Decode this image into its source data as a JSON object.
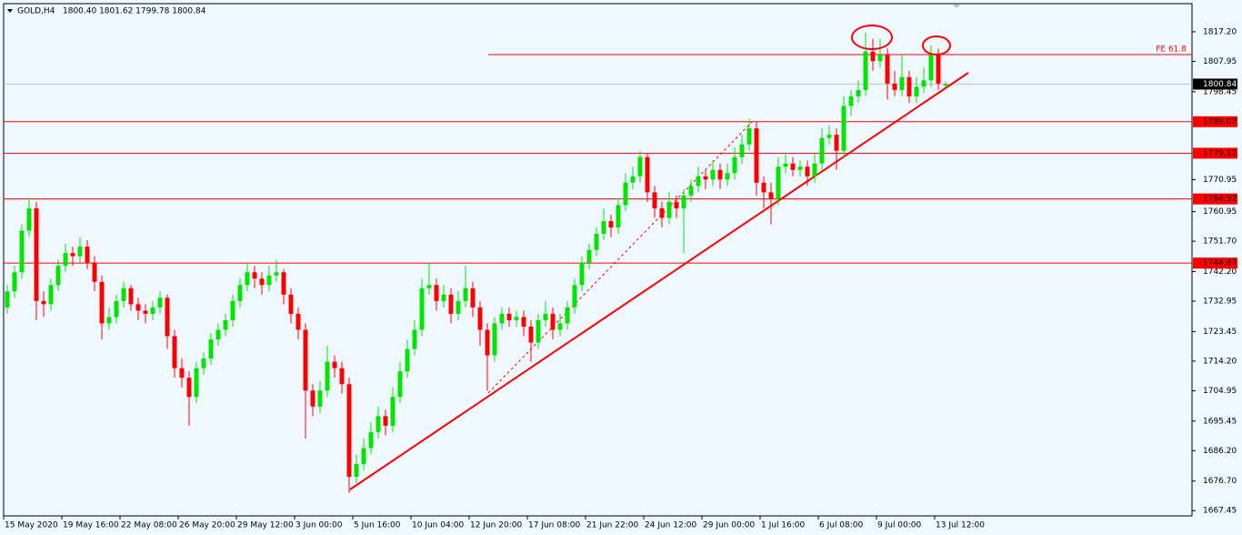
{
  "chart_data": {
    "type": "candlestick",
    "title": "GOLD,H4",
    "header_values": "1800.40 1801.62 1799.78 1800.84",
    "ylim": [
      1665.8,
      1826.0
    ],
    "yticks": [
      {
        "value": 1817.2,
        "label": "1817.20"
      },
      1807.95,
      1798.45,
      1770.95,
      1760.95,
      {
        "value": 1751.7,
        "label": "1751.70"
      },
      {
        "value": 1742.2,
        "label": "1742.20"
      },
      1732.95,
      1723.45,
      {
        "value": 1714.2,
        "label": "1714.20"
      },
      1704.95,
      1695.45,
      {
        "value": 1686.2,
        "label": "1686.20"
      },
      {
        "value": 1676.7,
        "label": "1676.70"
      },
      1667.45
    ],
    "x_labels": [
      "15 May 2020",
      "19 May 16:00",
      "22 May 08:00",
      "26 May 20:00",
      "29 May 12:00",
      "3 Jun 00:00",
      "5 Jun 16:00",
      "10 Jun 04:00",
      "12 Jun 20:00",
      "17 Jun 08:00",
      "21 Jun 22:00",
      "24 Jun 12:00",
      "29 Jun 00:00",
      "1 Jul 16:00",
      "6 Jul 08:00",
      "9 Jul 00:00",
      "13 Jul 12:00"
    ],
    "levels": [
      1789.07,
      1779.22,
      1764.92,
      1744.87
    ],
    "level_color": "#ff0000",
    "last_price": 1800.84,
    "fe_label": "FE 61.8",
    "bull_color": "#00e600",
    "bear_color": "#ff0000",
    "candles": [
      [
        1731,
        1738,
        1729,
        1736
      ],
      [
        1736,
        1744,
        1734,
        1742
      ],
      [
        1742,
        1757,
        1740,
        1755
      ],
      [
        1755,
        1765,
        1753,
        1762
      ],
      [
        1762,
        1764,
        1727,
        1733
      ],
      [
        1733,
        1736,
        1728,
        1732
      ],
      [
        1732,
        1740,
        1730,
        1738
      ],
      [
        1738,
        1746,
        1736,
        1744
      ],
      [
        1744,
        1751,
        1742,
        1748
      ],
      [
        1748,
        1750,
        1744,
        1747
      ],
      [
        1747,
        1753,
        1745,
        1750
      ],
      [
        1750,
        1752,
        1743,
        1745
      ],
      [
        1745,
        1747,
        1736,
        1739
      ],
      [
        1739,
        1741,
        1721,
        1726
      ],
      [
        1726,
        1731,
        1724,
        1728
      ],
      [
        1728,
        1735,
        1726,
        1733
      ],
      [
        1733,
        1739,
        1731,
        1737
      ],
      [
        1737,
        1738,
        1730,
        1732
      ],
      [
        1732,
        1734,
        1727,
        1730
      ],
      [
        1730,
        1732,
        1726,
        1729
      ],
      [
        1729,
        1733,
        1727,
        1731
      ],
      [
        1731,
        1736,
        1729,
        1734
      ],
      [
        1734,
        1735,
        1718,
        1722
      ],
      [
        1722,
        1724,
        1709,
        1712
      ],
      [
        1712,
        1715,
        1706,
        1709
      ],
      [
        1709,
        1711,
        1694,
        1703
      ],
      [
        1703,
        1714,
        1701,
        1712
      ],
      [
        1712,
        1717,
        1710,
        1715
      ],
      [
        1715,
        1723,
        1713,
        1721
      ],
      [
        1721,
        1726,
        1719,
        1724
      ],
      [
        1724,
        1729,
        1722,
        1727
      ],
      [
        1727,
        1735,
        1725,
        1733
      ],
      [
        1733,
        1740,
        1731,
        1738
      ],
      [
        1738,
        1745,
        1736,
        1742
      ],
      [
        1742,
        1744,
        1737,
        1740
      ],
      [
        1740,
        1742,
        1735,
        1738
      ],
      [
        1738,
        1744,
        1736,
        1741
      ],
      [
        1741,
        1746,
        1739,
        1742
      ],
      [
        1742,
        1743,
        1732,
        1735
      ],
      [
        1735,
        1737,
        1726,
        1729
      ],
      [
        1729,
        1731,
        1721,
        1724
      ],
      [
        1724,
        1726,
        1690,
        1705
      ],
      [
        1705,
        1707,
        1697,
        1700
      ],
      [
        1700,
        1708,
        1698,
        1705
      ],
      [
        1705,
        1719,
        1703,
        1714
      ],
      [
        1714,
        1716,
        1709,
        1712
      ],
      [
        1712,
        1714,
        1704,
        1707
      ],
      [
        1707,
        1709,
        1673,
        1678
      ],
      [
        1678,
        1685,
        1676,
        1682
      ],
      [
        1682,
        1690,
        1680,
        1687
      ],
      [
        1687,
        1695,
        1685,
        1692
      ],
      [
        1692,
        1700,
        1690,
        1697
      ],
      [
        1697,
        1699,
        1691,
        1694
      ],
      [
        1694,
        1706,
        1692,
        1703
      ],
      [
        1703,
        1714,
        1701,
        1711
      ],
      [
        1711,
        1721,
        1709,
        1718
      ],
      [
        1718,
        1727,
        1716,
        1724
      ],
      [
        1724,
        1740,
        1722,
        1737
      ],
      [
        1737,
        1745,
        1735,
        1738
      ],
      [
        1738,
        1740,
        1730,
        1733
      ],
      [
        1733,
        1738,
        1731,
        1735
      ],
      [
        1735,
        1737,
        1726,
        1729
      ],
      [
        1729,
        1736,
        1727,
        1733
      ],
      [
        1733,
        1744,
        1731,
        1737
      ],
      [
        1737,
        1739,
        1728,
        1731
      ],
      [
        1731,
        1733,
        1719,
        1724
      ],
      [
        1724,
        1726,
        1705,
        1716
      ],
      [
        1716,
        1728,
        1714,
        1726
      ],
      [
        1726,
        1731,
        1724,
        1729
      ],
      [
        1729,
        1731,
        1725,
        1727
      ],
      [
        1727,
        1730,
        1725,
        1728
      ],
      [
        1728,
        1730,
        1722,
        1725
      ],
      [
        1725,
        1727,
        1714,
        1720
      ],
      [
        1720,
        1729,
        1718,
        1727
      ],
      [
        1727,
        1733,
        1725,
        1729
      ],
      [
        1729,
        1731,
        1721,
        1724
      ],
      [
        1724,
        1729,
        1722,
        1726
      ],
      [
        1726,
        1733,
        1724,
        1731
      ],
      [
        1731,
        1740,
        1729,
        1738
      ],
      [
        1738,
        1747,
        1736,
        1745
      ],
      [
        1745,
        1751,
        1743,
        1749
      ],
      [
        1749,
        1756,
        1747,
        1754
      ],
      [
        1754,
        1762,
        1752,
        1758
      ],
      [
        1758,
        1760,
        1753,
        1756
      ],
      [
        1756,
        1765,
        1754,
        1763
      ],
      [
        1763,
        1773,
        1761,
        1770
      ],
      [
        1770,
        1775,
        1768,
        1772
      ],
      [
        1772,
        1780,
        1770,
        1778
      ],
      [
        1778,
        1779,
        1764,
        1767
      ],
      [
        1767,
        1769,
        1759,
        1762
      ],
      [
        1762,
        1764,
        1756,
        1759
      ],
      [
        1759,
        1767,
        1757,
        1764
      ],
      [
        1764,
        1766,
        1759,
        1762
      ],
      [
        1762,
        1768,
        1748,
        1766
      ],
      [
        1766,
        1771,
        1764,
        1769
      ],
      [
        1769,
        1775,
        1767,
        1772
      ],
      [
        1772,
        1774,
        1768,
        1771
      ],
      [
        1771,
        1777,
        1769,
        1774
      ],
      [
        1774,
        1776,
        1768,
        1771
      ],
      [
        1771,
        1776,
        1769,
        1773
      ],
      [
        1773,
        1781,
        1771,
        1778
      ],
      [
        1778,
        1785,
        1776,
        1782
      ],
      [
        1782,
        1790,
        1780,
        1787
      ],
      [
        1787,
        1789,
        1766,
        1770
      ],
      [
        1770,
        1772,
        1762,
        1767
      ],
      [
        1767,
        1770,
        1757,
        1765
      ],
      [
        1765,
        1778,
        1763,
        1775
      ],
      [
        1775,
        1779,
        1773,
        1776
      ],
      [
        1776,
        1778,
        1772,
        1774
      ],
      [
        1774,
        1777,
        1772,
        1775
      ],
      [
        1775,
        1777,
        1769,
        1772
      ],
      [
        1772,
        1779,
        1770,
        1776
      ],
      [
        1776,
        1787,
        1774,
        1784
      ],
      [
        1784,
        1788,
        1782,
        1785
      ],
      [
        1785,
        1787,
        1774,
        1780
      ],
      [
        1780,
        1797,
        1778,
        1794
      ],
      [
        1794,
        1799,
        1791,
        1797
      ],
      [
        1797,
        1802,
        1795,
        1799
      ],
      [
        1799,
        1817,
        1797,
        1811
      ],
      [
        1811,
        1815,
        1805,
        1808
      ],
      [
        1808,
        1815,
        1806,
        1810
      ],
      [
        1810,
        1812,
        1796,
        1801
      ],
      [
        1801,
        1805,
        1797,
        1799
      ],
      [
        1799,
        1810,
        1797,
        1803
      ],
      [
        1803,
        1805,
        1795,
        1797
      ],
      [
        1797,
        1803,
        1795,
        1800
      ],
      [
        1800,
        1806,
        1798,
        1802
      ],
      [
        1802,
        1813,
        1800,
        1810
      ],
      [
        1810,
        1812,
        1799,
        1801
      ],
      [
        1800.4,
        1801.62,
        1799.78,
        1800.84
      ]
    ]
  }
}
